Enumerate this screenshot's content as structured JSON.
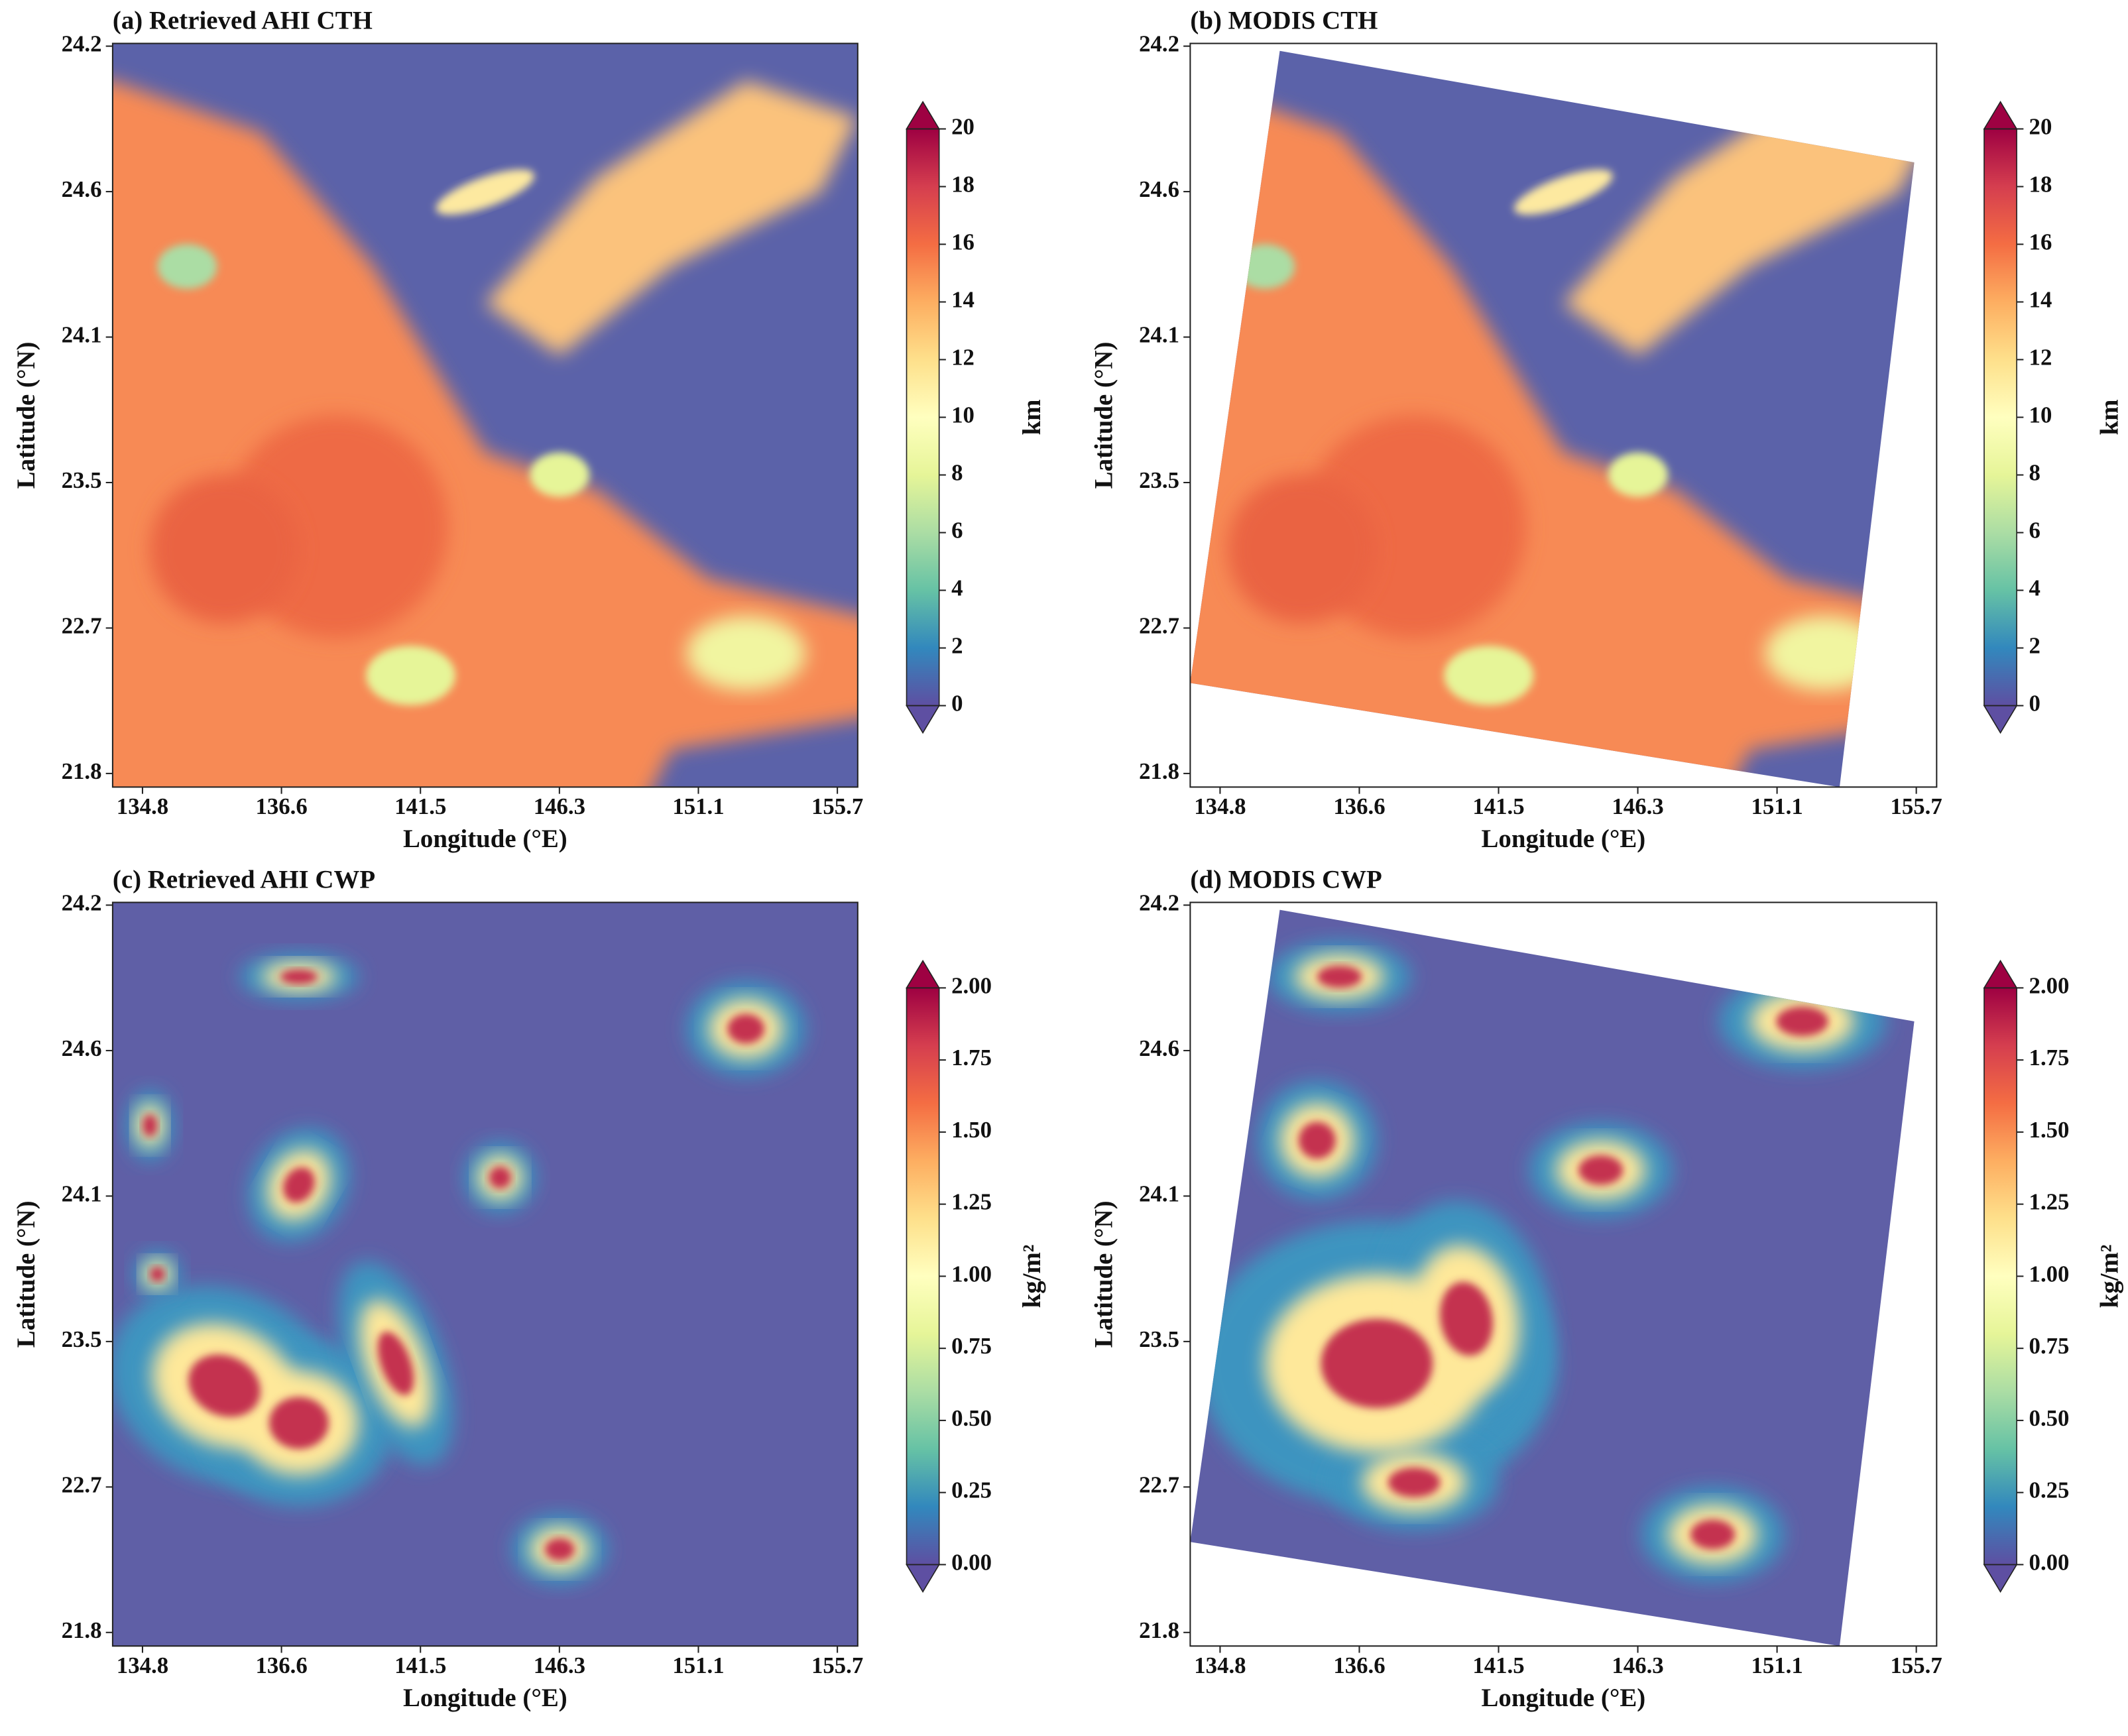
{
  "chart_data": [
    {
      "type": "heatmap",
      "title": "(a) Retrieved AHI CTH",
      "xlabel": "Longitude (°E)",
      "ylabel": "Latitude (°N)",
      "x_categories": [
        "134.8",
        "136.6",
        "141.5",
        "146.3",
        "151.1",
        "155.7"
      ],
      "y_categories": [
        "21.8",
        "22.7",
        "23.5",
        "24.1",
        "24.6",
        "24.2"
      ],
      "colorbar": {
        "label": "km",
        "colormap": "Spectral_r",
        "extend": "both",
        "clim": [
          0,
          20
        ],
        "cticks": [
          0,
          2,
          4,
          6,
          8,
          10,
          12,
          14,
          16,
          18,
          20
        ]
      }
    },
    {
      "type": "heatmap",
      "title": "(b) MODIS CTH",
      "xlabel": "Longitude (°E)",
      "ylabel": "Latitude (°N)",
      "x_categories": [
        "134.8",
        "136.6",
        "141.5",
        "146.3",
        "151.1",
        "155.7"
      ],
      "y_categories": [
        "21.8",
        "22.7",
        "23.5",
        "24.1",
        "24.6",
        "24.2"
      ],
      "colorbar": {
        "label": "km",
        "colormap": "Spectral_r",
        "extend": "both",
        "clim": [
          0,
          20
        ],
        "cticks": [
          0,
          2,
          4,
          6,
          8,
          10,
          12,
          14,
          16,
          18,
          20
        ]
      }
    },
    {
      "type": "heatmap",
      "title": "(c) Retrieved AHI CWP",
      "xlabel": "Longitude (°E)",
      "ylabel": "Latitude (°N)",
      "x_categories": [
        "134.8",
        "136.6",
        "141.5",
        "146.3",
        "151.1",
        "155.7"
      ],
      "y_categories": [
        "21.8",
        "22.7",
        "23.5",
        "24.1",
        "24.6",
        "24.2"
      ],
      "colorbar": {
        "label": "kg/m²",
        "colormap": "Spectral_r",
        "extend": "both",
        "clim": [
          0,
          2
        ],
        "cticks": [
          {
            "value": 0,
            "label": "0.00"
          },
          0.25,
          {
            "value": 0.5,
            "label": "0.50"
          },
          0.75,
          {
            "value": 1,
            "label": "1.00"
          },
          1.25,
          {
            "value": 1.5,
            "label": "1.50"
          },
          1.75,
          {
            "value": 2,
            "label": "2.00"
          }
        ]
      }
    },
    {
      "type": "heatmap",
      "title": "(d) MODIS CWP",
      "xlabel": "Longitude (°E)",
      "ylabel": "Latitude (°N)",
      "x_categories": [
        "134.8",
        "136.6",
        "141.5",
        "146.3",
        "151.1",
        "155.7"
      ],
      "y_categories": [
        "21.8",
        "22.7",
        "23.5",
        "24.1",
        "24.6",
        "24.2"
      ],
      "colorbar": {
        "label": "kg/m²",
        "colormap": "Spectral_r",
        "extend": "both",
        "clim": [
          0,
          2
        ],
        "cticks": [
          {
            "value": 0,
            "label": "0.00"
          },
          0.25,
          {
            "value": 0.5,
            "label": "0.50"
          },
          0.75,
          {
            "value": 1,
            "label": "1.00"
          },
          1.25,
          {
            "value": 1.5,
            "label": "1.50"
          },
          1.75,
          {
            "value": 2,
            "label": "2.00"
          }
        ]
      }
    }
  ]
}
